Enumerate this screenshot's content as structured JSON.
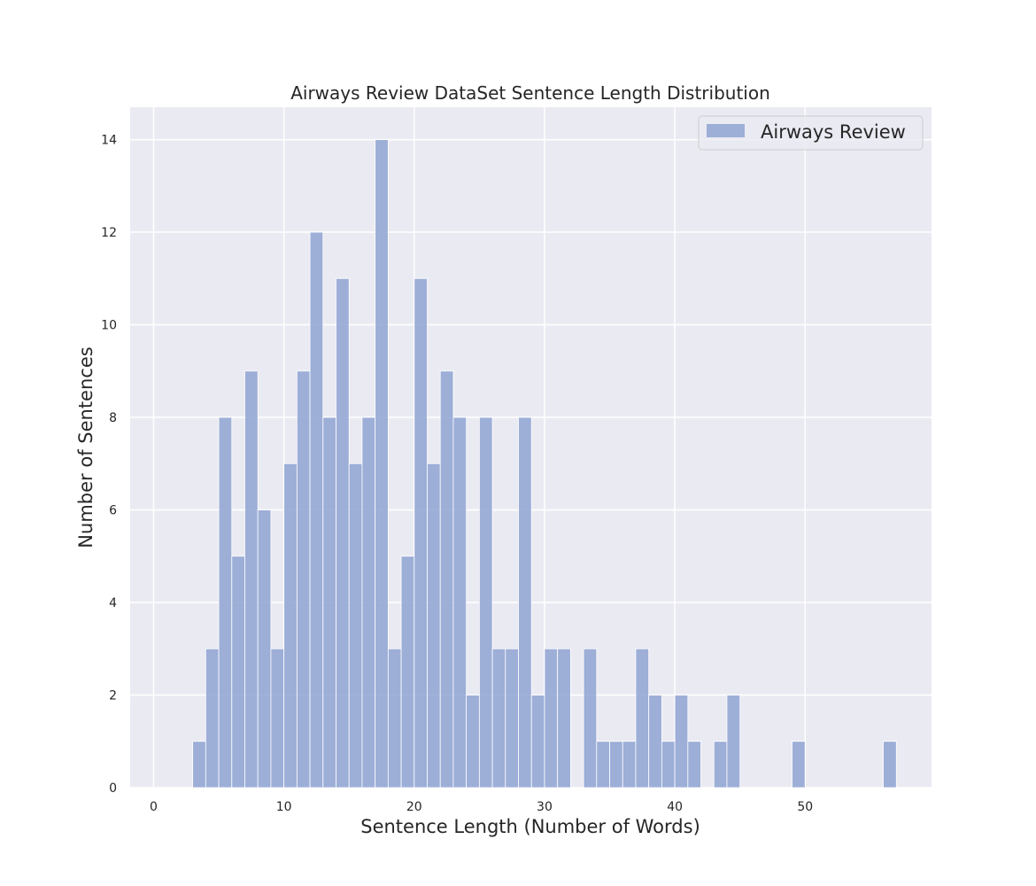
{
  "chart_data": {
    "type": "bar",
    "title": "Airways Review DataSet Sentence Length Distribution",
    "xlabel": "Sentence Length (Number of Words)",
    "ylabel": "Number of Sentences",
    "xlim": [
      -1.8,
      59.7
    ],
    "ylim": [
      0,
      14.7
    ],
    "xticks": [
      0,
      10,
      20,
      30,
      40,
      50
    ],
    "yticks": [
      0,
      2,
      4,
      6,
      8,
      10,
      12,
      14
    ],
    "bin_width": 1,
    "grid": true,
    "legend": {
      "position": "top-right",
      "entries": [
        "Airways Review"
      ]
    },
    "series": [
      {
        "name": "Airways Review",
        "color": "#8a9fcf",
        "bins": [
          {
            "x": 3,
            "value": 1
          },
          {
            "x": 4,
            "value": 3
          },
          {
            "x": 5,
            "value": 8
          },
          {
            "x": 6,
            "value": 5
          },
          {
            "x": 7,
            "value": 9
          },
          {
            "x": 8,
            "value": 6
          },
          {
            "x": 9,
            "value": 3
          },
          {
            "x": 10,
            "value": 7
          },
          {
            "x": 11,
            "value": 9
          },
          {
            "x": 12,
            "value": 12
          },
          {
            "x": 13,
            "value": 8
          },
          {
            "x": 14,
            "value": 11
          },
          {
            "x": 15,
            "value": 7
          },
          {
            "x": 16,
            "value": 8
          },
          {
            "x": 17,
            "value": 14
          },
          {
            "x": 18,
            "value": 3
          },
          {
            "x": 19,
            "value": 5
          },
          {
            "x": 20,
            "value": 11
          },
          {
            "x": 21,
            "value": 7
          },
          {
            "x": 22,
            "value": 9
          },
          {
            "x": 23,
            "value": 8
          },
          {
            "x": 24,
            "value": 2
          },
          {
            "x": 25,
            "value": 8
          },
          {
            "x": 26,
            "value": 3
          },
          {
            "x": 27,
            "value": 3
          },
          {
            "x": 28,
            "value": 8
          },
          {
            "x": 29,
            "value": 2
          },
          {
            "x": 30,
            "value": 3
          },
          {
            "x": 31,
            "value": 3
          },
          {
            "x": 33,
            "value": 3
          },
          {
            "x": 34,
            "value": 1
          },
          {
            "x": 35,
            "value": 1
          },
          {
            "x": 36,
            "value": 1
          },
          {
            "x": 37,
            "value": 3
          },
          {
            "x": 38,
            "value": 2
          },
          {
            "x": 39,
            "value": 1
          },
          {
            "x": 40,
            "value": 2
          },
          {
            "x": 41,
            "value": 1
          },
          {
            "x": 43,
            "value": 1
          },
          {
            "x": 44,
            "value": 2
          },
          {
            "x": 49,
            "value": 1
          },
          {
            "x": 56,
            "value": 1
          }
        ]
      }
    ]
  }
}
